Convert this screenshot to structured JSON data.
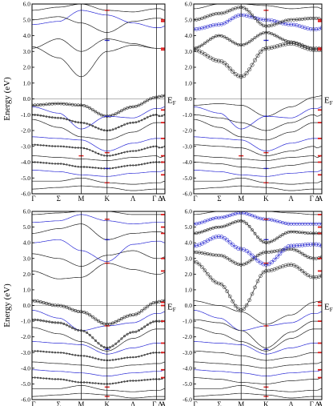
{
  "figure": {
    "colors": {
      "band": "#222222",
      "blue": "#2b2bd6",
      "red": "#e01a1a",
      "axis": "#000000",
      "zero_line": "#9a9a9a",
      "marker": "#333333",
      "marker_blue": "#3434d0"
    }
  },
  "chart_data": [
    {
      "type": "line",
      "panel": "top-left",
      "ylabel": "Energy (eV)",
      "ylim": [
        -6.0,
        6.0
      ],
      "yticks": [
        "6.0",
        "5.0",
        "4.0",
        "3.0",
        "2.0",
        "1.0",
        "0.0",
        "-1.0",
        "-2.0",
        "-3.0",
        "-4.0",
        "-5.0",
        "-6.0"
      ],
      "xticks": [
        "Γ",
        "Σ",
        "M",
        "K",
        "Λ",
        "Γ",
        "Δ",
        "A"
      ],
      "fermi_label": "E",
      "fermi_sub": "F",
      "notes": "band curves approximated from figure"
    },
    {
      "type": "line",
      "panel": "top-right",
      "ylim": [
        -6.0,
        6.0
      ],
      "yticks": [
        "6.0",
        "5.0",
        "4.0",
        "3.0",
        "2.0",
        "1.0",
        "0.0",
        "-1.0",
        "-2.0",
        "-3.0",
        "-4.0",
        "-5.0",
        "-6.0"
      ],
      "xticks": [
        "Γ",
        "Σ",
        "M",
        "K",
        "Λ",
        "Γ",
        "Δ",
        "A"
      ],
      "fermi_label": "E",
      "fermi_sub": "F"
    },
    {
      "type": "line",
      "panel": "bottom-left",
      "ylabel": "Energy (eV)",
      "ylim": [
        -6.0,
        6.0
      ],
      "yticks": [
        "6.0",
        "5.0",
        "4.0",
        "3.0",
        "2.0",
        "1.0",
        "0.0",
        "-1.0",
        "-2.0",
        "-3.0",
        "-4.0",
        "-5.0",
        "-6.0"
      ],
      "xticks": [
        "Γ",
        "Σ",
        "M",
        "K",
        "Λ",
        "Γ",
        "Δ",
        "A"
      ],
      "fermi_label": "E",
      "fermi_sub": "F"
    },
    {
      "type": "line",
      "panel": "bottom-right",
      "ylim": [
        -6.0,
        6.0
      ],
      "yticks": [
        "6.0",
        "5.0",
        "4.0",
        "3.0",
        "2.0",
        "1.0",
        "0.0",
        "-1.0",
        "-2.0",
        "-3.0",
        "-4.0",
        "-5.0",
        "-6.0"
      ],
      "xticks": [
        "Γ",
        "Σ",
        "M",
        "K",
        "Λ",
        "Γ",
        "Δ",
        "A"
      ],
      "fermi_label": "E",
      "fermi_sub": "F"
    }
  ]
}
